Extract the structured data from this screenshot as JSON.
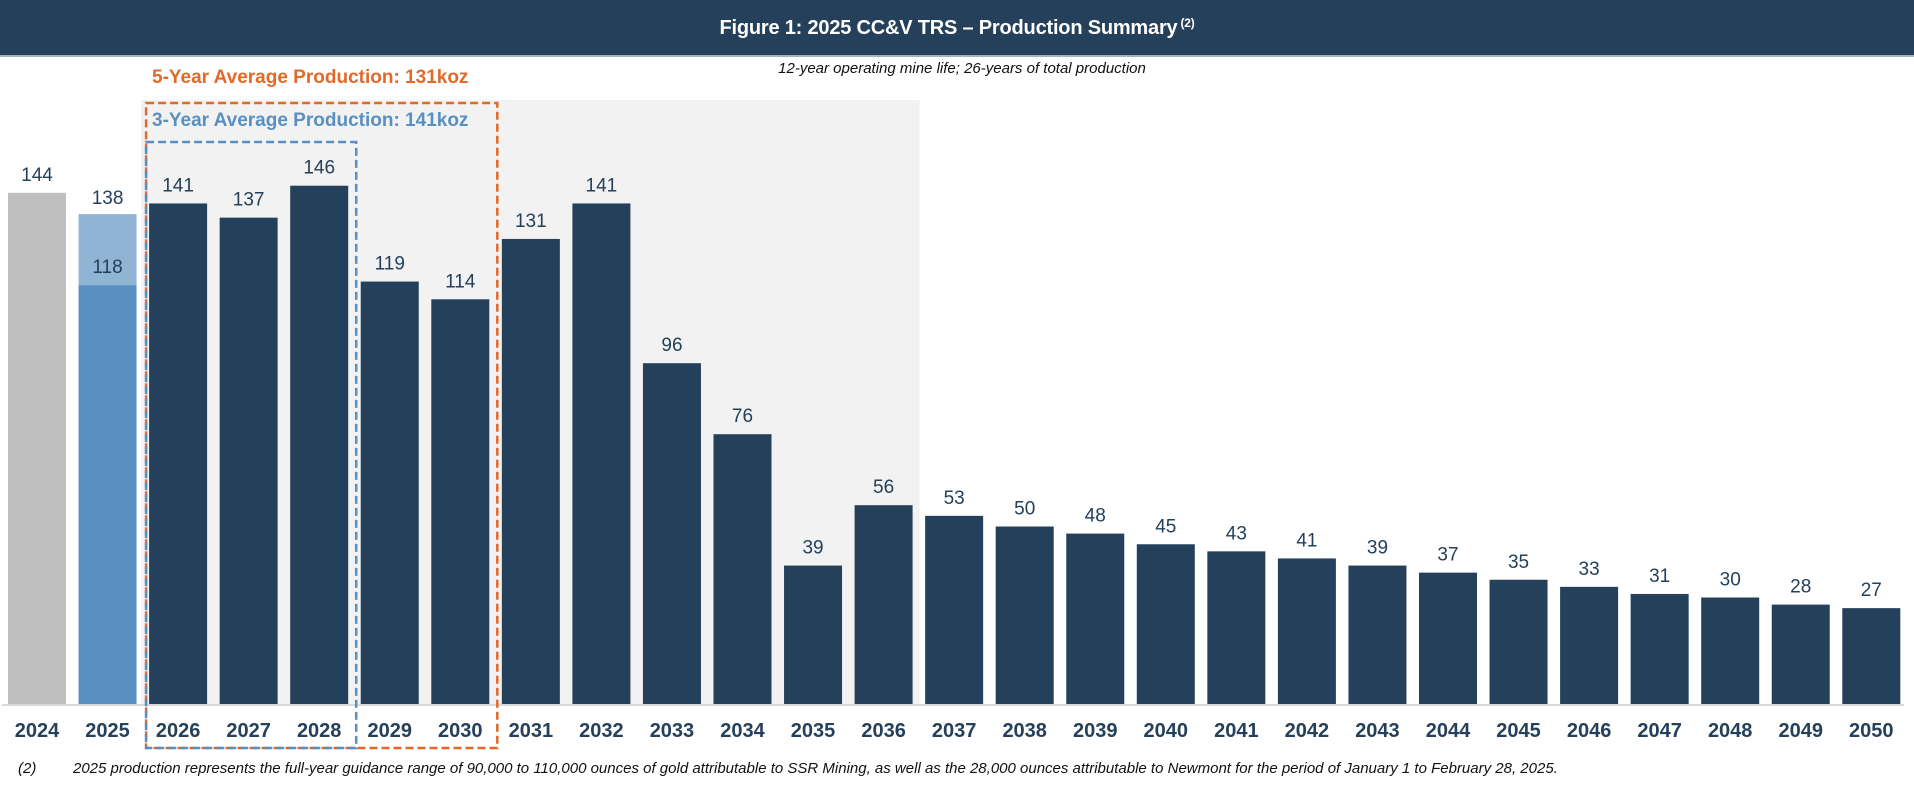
{
  "header": {
    "title": "Figure 1: 2025 CC&V TRS – Production Summary",
    "superscript": "(2)"
  },
  "subtitle": "12-year operating mine life; 26-years of total production",
  "annotations": {
    "five_year_avg": "5-Year Average Production: 131koz",
    "three_year_avg": "3-Year Average Production: 141koz"
  },
  "footnote": {
    "number": "(2)",
    "text": "2025 production represents the full-year guidance range of 90,000 to 110,000 ounces of gold attributable to SSR Mining, as well as the 28,000 ounces attributable to Newmont for the period of January 1 to February 28, 2025."
  },
  "colors": {
    "header_bg": "#24405a",
    "bar_historic": "#bfbfbf",
    "bar_guidance_low": "#5a8fc1",
    "bar_guidance_high": "#90b4d4",
    "bar_forecast": "#24405a",
    "shade": "#f2f2f2",
    "orange": "#e3692b",
    "blue": "#5a8fc1",
    "label": "#24405a"
  },
  "chart_data": {
    "type": "bar",
    "title": "Figure 1: 2025 CC&V TRS – Production Summary (2)",
    "xlabel": "",
    "ylabel": "",
    "units": "koz",
    "ylim": [
      0,
      150
    ],
    "grid": false,
    "categories": [
      "2024",
      "2025",
      "2026",
      "2027",
      "2028",
      "2029",
      "2030",
      "2031",
      "2032",
      "2033",
      "2034",
      "2035",
      "2036",
      "2037",
      "2038",
      "2039",
      "2040",
      "2041",
      "2042",
      "2043",
      "2044",
      "2045",
      "2046",
      "2047",
      "2048",
      "2049",
      "2050"
    ],
    "values": [
      144,
      138,
      141,
      137,
      146,
      119,
      114,
      131,
      141,
      96,
      76,
      39,
      56,
      53,
      50,
      48,
      45,
      43,
      41,
      39,
      37,
      35,
      33,
      31,
      30,
      28,
      27
    ],
    "series_type": [
      "historic",
      "guidance",
      "forecast",
      "forecast",
      "forecast",
      "forecast",
      "forecast",
      "forecast",
      "forecast",
      "forecast",
      "forecast",
      "forecast",
      "forecast",
      "forecast",
      "forecast",
      "forecast",
      "forecast",
      "forecast",
      "forecast",
      "forecast",
      "forecast",
      "forecast",
      "forecast",
      "forecast",
      "forecast",
      "forecast",
      "forecast"
    ],
    "guidance_2025": {
      "low": 118,
      "high": 138
    },
    "highlight_regions": [
      {
        "label": "12-year operating mine life",
        "from": "2026",
        "to": "2036",
        "style": "shaded"
      },
      {
        "label": "5-Year Average Production: 131koz",
        "from": "2026",
        "to": "2030",
        "average": 131,
        "style": "dashed-orange"
      },
      {
        "label": "3-Year Average Production: 141koz",
        "from": "2026",
        "to": "2028",
        "average": 141,
        "style": "dashed-blue"
      }
    ]
  }
}
